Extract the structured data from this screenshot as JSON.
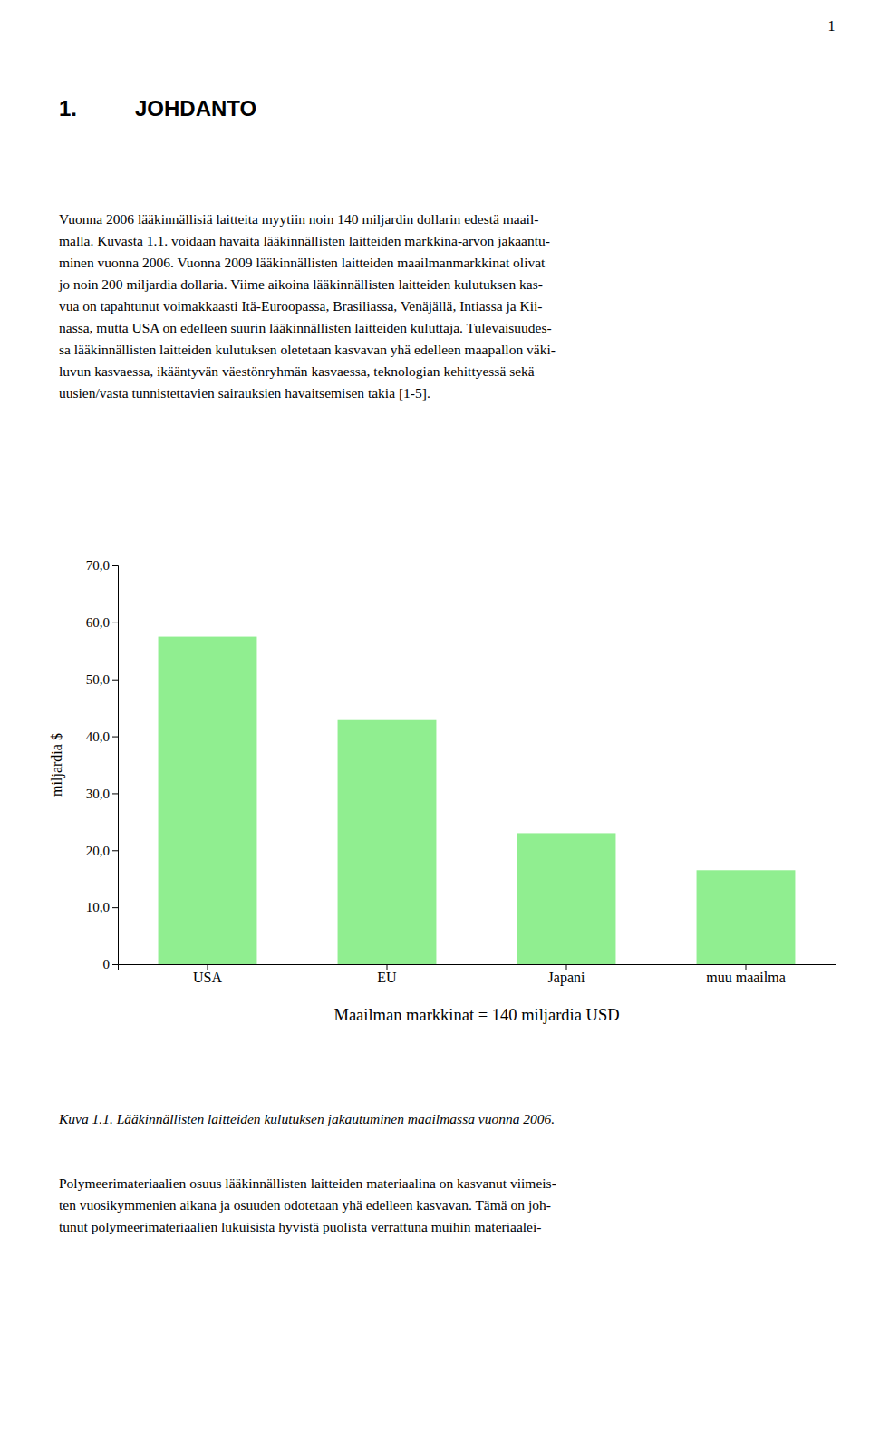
{
  "page_number": "1",
  "heading_number": "1.",
  "heading_text": "JOHDANTO",
  "paragraph1_lines": [
    "Vuonna 2006 lääkinnällisiä laitteita myytiin noin 140 miljardin dollarin edestä maail-",
    "malla. Kuvasta 1.1. voidaan havaita lääkinnällisten laitteiden markkina-arvon jakaantu-",
    "minen vuonna 2006. Vuonna 2009 lääkinnällisten laitteiden maailmanmarkkinat olivat",
    "jo noin 200 miljardia dollaria. Viime aikoina lääkinnällisten laitteiden kulutuksen kas-",
    "vua on tapahtunut voimakkaasti Itä-Euroopassa, Brasiliassa, Venäjällä, Intiassa ja Kii-",
    "nassa, mutta USA on edelleen suurin lääkinnällisten laitteiden kuluttaja. Tulevaisuudes-",
    "sa lääkinnällisten laitteiden kulutuksen oletetaan kasvavan yhä edelleen maapallon väki-",
    "luvun kasvaessa, ikääntyvän väestönryhmän kasvaessa, teknologian kehittyessä sekä",
    "uusien/vasta tunnistettavien sairauksien havaitsemisen takia [1-5]."
  ],
  "chart_data": {
    "type": "bar",
    "categories": [
      "USA",
      "EU",
      "Japani",
      "muu maailma"
    ],
    "values": [
      57.5,
      43.0,
      23.0,
      16.5
    ],
    "color": "#90EE90",
    "ylim": [
      0,
      70
    ],
    "yticks": [
      0,
      {
        "value": 10,
        "label": "10,0"
      },
      {
        "value": 20,
        "label": "20,0"
      },
      {
        "value": 30,
        "label": "30,0"
      },
      {
        "value": 40,
        "label": "40,0"
      },
      {
        "value": 50,
        "label": "50,0"
      },
      {
        "value": 60,
        "label": "60,0"
      },
      {
        "value": 70,
        "label": "70,0"
      }
    ],
    "ylabel": "miljardia $",
    "xlabel": "Maailman markkinat = 140 miljardia USD",
    "grid": false
  },
  "caption": "Kuva 1.1. Lääkinnällisten laitteiden kulutuksen jakautuminen maailmassa vuonna 2006.",
  "paragraph2_lines": [
    "Polymeerimateriaalien osuus lääkinnällisten laitteiden materiaalina on kasvanut viimeis-",
    "ten vuosikymmenien aikana ja osuuden odotetaan yhä edelleen kasvavan. Tämä on joh-",
    "tunut polymeerimateriaalien lukuisista hyvistä puolista verrattuna muihin materiaalei-"
  ]
}
